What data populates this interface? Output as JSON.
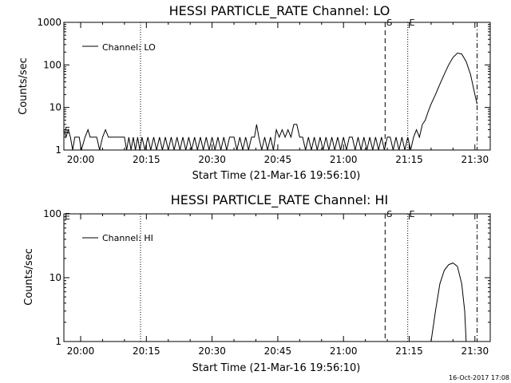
{
  "footer_timestamp": "16-Oct-2017 17:08",
  "chart_data": [
    {
      "type": "line",
      "title": "HESSI PARTICLE_RATE Channel: LO",
      "xlabel": "Start Time (21-Mar-16 19:56:10)",
      "ylabel": "Counts/sec",
      "y_scale": "log",
      "ylim": [
        1,
        1000
      ],
      "y_ticks": [
        1,
        10,
        100,
        1000
      ],
      "y_tick_labels": [
        "1",
        "10",
        "100",
        "1000"
      ],
      "x_ticks": [
        "20:00",
        "20:15",
        "20:30",
        "20:45",
        "21:00",
        "21:15",
        "21:30"
      ],
      "xlim": [
        "19:56:10",
        "21:33:30"
      ],
      "legend": {
        "label": "Channel: LO",
        "position": "top-left"
      },
      "markers": [
        {
          "time": "20:13:40",
          "style": "dotted",
          "label": ""
        },
        {
          "time": "21:09:30",
          "style": "dashed",
          "label": "S"
        },
        {
          "time": "21:14:40",
          "style": "dotted",
          "label": "E"
        },
        {
          "time": "21:30:30",
          "style": "dash-dot",
          "label": ""
        }
      ],
      "side_label": "E",
      "series": [
        {
          "name": "Channel: LO",
          "points": [
            [
              "19:56:10",
              3
            ],
            [
              "19:56:40",
              2
            ],
            [
              "19:57:10",
              3
            ],
            [
              "19:57:40",
              2
            ],
            [
              "19:58:10",
              1
            ],
            [
              "19:58:40",
              2
            ],
            [
              "19:59:10",
              2
            ],
            [
              "19:59:40",
              2
            ],
            [
              "20:00:10",
              1
            ],
            [
              "20:01:00",
              2
            ],
            [
              "20:01:40",
              3
            ],
            [
              "20:02:10",
              2
            ],
            [
              "20:03:40",
              2
            ],
            [
              "20:04:20",
              1
            ],
            [
              "20:05:00",
              2
            ],
            [
              "20:05:40",
              3
            ],
            [
              "20:06:20",
              2
            ],
            [
              "20:10:00",
              2
            ],
            [
              "20:10:30",
              1
            ],
            [
              "20:11:00",
              2
            ],
            [
              "20:11:30",
              1
            ],
            [
              "20:12:00",
              2
            ],
            [
              "20:12:30",
              1
            ],
            [
              "20:13:00",
              2
            ],
            [
              "20:13:30",
              1
            ],
            [
              "20:14:00",
              2
            ],
            [
              "20:14:40",
              1
            ],
            [
              "20:15:20",
              2
            ],
            [
              "20:16:00",
              1
            ],
            [
              "20:16:40",
              2
            ],
            [
              "20:17:20",
              1
            ],
            [
              "20:18:00",
              2
            ],
            [
              "20:18:40",
              1
            ],
            [
              "20:19:20",
              2
            ],
            [
              "20:20:00",
              1
            ],
            [
              "20:20:40",
              2
            ],
            [
              "20:21:20",
              1
            ],
            [
              "20:22:00",
              2
            ],
            [
              "20:22:40",
              1
            ],
            [
              "20:23:20",
              2
            ],
            [
              "20:24:00",
              1
            ],
            [
              "20:24:40",
              2
            ],
            [
              "20:25:20",
              1
            ],
            [
              "20:26:00",
              2
            ],
            [
              "20:26:40",
              1
            ],
            [
              "20:27:20",
              2
            ],
            [
              "20:28:00",
              1
            ],
            [
              "20:28:40",
              2
            ],
            [
              "20:29:20",
              1
            ],
            [
              "20:30:00",
              2
            ],
            [
              "20:30:40",
              1
            ],
            [
              "20:31:20",
              2
            ],
            [
              "20:32:00",
              1
            ],
            [
              "20:32:40",
              2
            ],
            [
              "20:33:20",
              1
            ],
            [
              "20:34:00",
              2
            ],
            [
              "20:35:00",
              2
            ],
            [
              "20:35:40",
              1
            ],
            [
              "20:36:20",
              2
            ],
            [
              "20:37:00",
              1
            ],
            [
              "20:37:40",
              2
            ],
            [
              "20:38:20",
              1
            ],
            [
              "20:39:00",
              2
            ],
            [
              "20:39:40",
              2
            ],
            [
              "20:40:10",
              4
            ],
            [
              "20:40:40",
              2
            ],
            [
              "20:41:20",
              1
            ],
            [
              "20:42:00",
              2
            ],
            [
              "20:42:40",
              1
            ],
            [
              "20:43:20",
              2
            ],
            [
              "20:44:00",
              1
            ],
            [
              "20:44:40",
              3
            ],
            [
              "20:45:20",
              2
            ],
            [
              "20:46:00",
              3
            ],
            [
              "20:46:40",
              2
            ],
            [
              "20:47:20",
              3
            ],
            [
              "20:48:00",
              2
            ],
            [
              "20:48:40",
              4
            ],
            [
              "20:49:20",
              4
            ],
            [
              "20:50:00",
              2
            ],
            [
              "20:50:40",
              2
            ],
            [
              "20:51:20",
              1
            ],
            [
              "20:52:00",
              2
            ],
            [
              "20:52:40",
              1
            ],
            [
              "20:53:20",
              2
            ],
            [
              "20:54:00",
              1
            ],
            [
              "20:54:40",
              2
            ],
            [
              "20:55:20",
              1
            ],
            [
              "20:56:00",
              2
            ],
            [
              "20:56:40",
              1
            ],
            [
              "20:57:20",
              2
            ],
            [
              "20:58:00",
              1
            ],
            [
              "20:58:40",
              2
            ],
            [
              "20:59:20",
              1
            ],
            [
              "21:00:00",
              2
            ],
            [
              "21:00:40",
              1
            ],
            [
              "21:01:20",
              2
            ],
            [
              "21:02:00",
              2
            ],
            [
              "21:02:40",
              1
            ],
            [
              "21:03:20",
              2
            ],
            [
              "21:04:00",
              1
            ],
            [
              "21:04:40",
              2
            ],
            [
              "21:05:20",
              1
            ],
            [
              "21:06:00",
              2
            ],
            [
              "21:06:40",
              1
            ],
            [
              "21:07:20",
              2
            ],
            [
              "21:08:00",
              1
            ],
            [
              "21:08:40",
              2
            ],
            [
              "21:09:20",
              1
            ],
            [
              "21:10:00",
              2
            ],
            [
              "21:10:40",
              2
            ],
            [
              "21:11:20",
              1
            ],
            [
              "21:12:00",
              2
            ],
            [
              "21:12:40",
              1
            ],
            [
              "21:13:20",
              2
            ],
            [
              "21:14:00",
              1
            ],
            [
              "21:14:40",
              2
            ],
            [
              "21:15:20",
              1
            ],
            [
              "21:16:00",
              2
            ],
            [
              "21:16:40",
              3
            ],
            [
              "21:17:20",
              2
            ],
            [
              "21:18:00",
              4
            ],
            [
              "21:18:40",
              5
            ],
            [
              "21:19:20",
              8
            ],
            [
              "21:20:00",
              12
            ],
            [
              "21:21:00",
              20
            ],
            [
              "21:22:00",
              35
            ],
            [
              "21:23:00",
              60
            ],
            [
              "21:24:00",
              100
            ],
            [
              "21:25:00",
              150
            ],
            [
              "21:26:00",
              190
            ],
            [
              "21:27:00",
              180
            ],
            [
              "21:28:00",
              120
            ],
            [
              "21:29:00",
              60
            ],
            [
              "21:30:00",
              20
            ],
            [
              "21:30:30",
              12
            ]
          ]
        }
      ]
    },
    {
      "type": "line",
      "title": "HESSI PARTICLE_RATE Channel: HI",
      "xlabel": "Start Time (21-Mar-16 19:56:10)",
      "ylabel": "Counts/sec",
      "y_scale": "log",
      "ylim": [
        1,
        100
      ],
      "y_ticks": [
        1,
        10,
        100
      ],
      "y_tick_labels": [
        "1",
        "10",
        "100"
      ],
      "x_ticks": [
        "20:00",
        "20:15",
        "20:30",
        "20:45",
        "21:00",
        "21:15",
        "21:30"
      ],
      "xlim": [
        "19:56:10",
        "21:33:30"
      ],
      "legend": {
        "label": "Channel: HI",
        "position": "top-left"
      },
      "markers": [
        {
          "time": "20:13:40",
          "style": "dotted",
          "label": ""
        },
        {
          "time": "21:09:30",
          "style": "dashed",
          "label": "S"
        },
        {
          "time": "21:14:40",
          "style": "dotted",
          "label": "E"
        },
        {
          "time": "21:30:30",
          "style": "dash-dot",
          "label": ""
        }
      ],
      "side_label": "E",
      "series": [
        {
          "name": "Channel: HI",
          "points": [
            [
              "21:20:00",
              1
            ],
            [
              "21:21:00",
              3
            ],
            [
              "21:22:00",
              8
            ],
            [
              "21:23:00",
              13
            ],
            [
              "21:24:00",
              16
            ],
            [
              "21:25:00",
              17
            ],
            [
              "21:26:00",
              15
            ],
            [
              "21:27:00",
              8
            ],
            [
              "21:27:40",
              3
            ],
            [
              "21:28:00",
              1
            ]
          ]
        }
      ]
    }
  ]
}
